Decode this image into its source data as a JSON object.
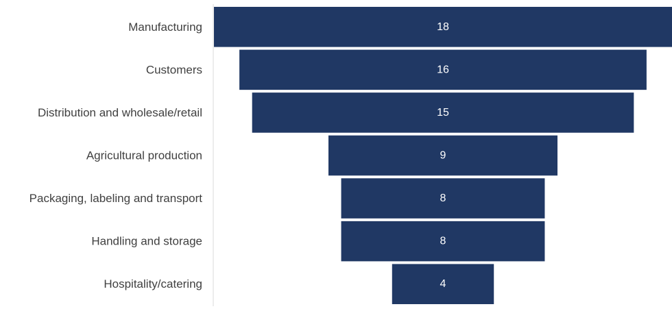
{
  "chart_data": {
    "type": "bar",
    "subtype": "funnel",
    "categories": [
      "Manufacturing",
      "Customers",
      "Distribution and wholesale/retail",
      "Agricultural production",
      "Packaging, labeling and transport",
      "Handling and storage",
      "Hospitality/catering"
    ],
    "values": [
      18,
      16,
      15,
      9,
      8,
      8,
      4
    ],
    "value_labels": [
      "18",
      "16",
      "15",
      "9",
      "8",
      "8",
      "4"
    ],
    "title": "",
    "xlabel": "",
    "ylabel": "",
    "xlim": [
      0,
      18
    ],
    "grid": false,
    "legend": "none",
    "bar_color": "#203864",
    "value_label_color": "#ffffff",
    "category_label_color": "#404040",
    "axis_line_color": "#d9d9d9"
  }
}
